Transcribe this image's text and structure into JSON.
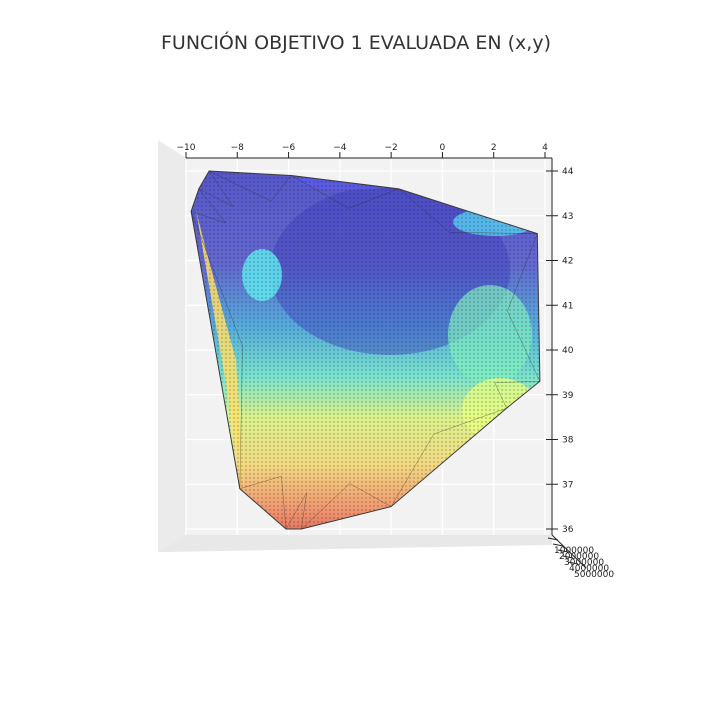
{
  "chart_data": {
    "type": "surface",
    "title": "FUNCIÓN OBJETIVO 1 EVALUADA EN (x,y)",
    "xlabel": "",
    "ylabel": "",
    "zlabel": "",
    "x_ticks": [
      "−10",
      "−8",
      "−6",
      "−4",
      "−2",
      "0",
      "2",
      "4"
    ],
    "x_tick_values": [
      -10,
      -8,
      -6,
      -4,
      -2,
      0,
      2,
      4
    ],
    "y_ticks": [
      "44",
      "43",
      "42",
      "41",
      "40",
      "39",
      "38",
      "37",
      "36"
    ],
    "y_tick_values": [
      44,
      43,
      42,
      41,
      40,
      39,
      38,
      37,
      36
    ],
    "z_ticks": [
      "1000000",
      "2000000",
      "3000000",
      "4000000",
      "5000000"
    ],
    "xlim": [
      -10,
      4
    ],
    "ylim": [
      36,
      44
    ],
    "view": "top-down",
    "grid": true,
    "colormap": [
      "#3b3bc4",
      "#3aa0d8",
      "#63e8e8",
      "#7ff0b8",
      "#e2ff7a",
      "#ffe57a",
      "#ff8a6a",
      "#d9443e"
    ],
    "colormap_note_min": "low",
    "region_outline_xy": [
      [
        -9.5,
        43.6
      ],
      [
        -9.1,
        44.0
      ],
      [
        -5.9,
        43.9
      ],
      [
        -1.7,
        43.6
      ],
      [
        3.7,
        42.6
      ],
      [
        3.8,
        39.3
      ],
      [
        2.5,
        38.7
      ],
      [
        -2.0,
        36.5
      ],
      [
        -5.5,
        36.0
      ],
      [
        -6.1,
        36.0
      ],
      [
        -7.9,
        36.9
      ],
      [
        -9.8,
        43.1
      ]
    ]
  }
}
